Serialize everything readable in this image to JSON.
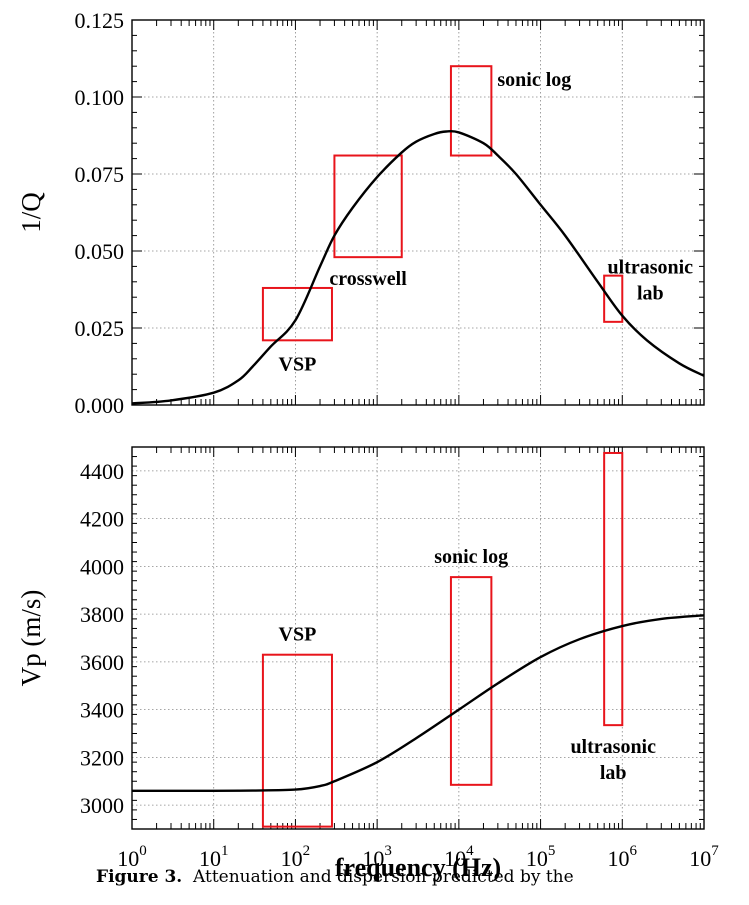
{
  "caption": {
    "label": "Figure 3.",
    "text": "Attenuation and dispersion predicted by the"
  },
  "chart_data": [
    {
      "type": "line",
      "xlabel": "",
      "ylabel": "1/Q",
      "xscale": "log",
      "xlim": [
        1,
        10000000
      ],
      "ylim": [
        0,
        0.125
      ],
      "yticks": [
        "0.000",
        "0.025",
        "0.050",
        "0.075",
        "0.100",
        "0.125"
      ],
      "grid": true,
      "series": [
        {
          "x": [
            1,
            3,
            10,
            20,
            30,
            50,
            100,
            200,
            300,
            500,
            1000,
            2000,
            3000,
            5000,
            7000,
            10000,
            20000,
            30000,
            50000,
            100000,
            200000,
            500000,
            1000000,
            2000000,
            5000000,
            10000000
          ],
          "y": [
            0.0005,
            0.0015,
            0.004,
            0.008,
            0.0125,
            0.019,
            0.0275,
            0.045,
            0.055,
            0.064,
            0.074,
            0.082,
            0.0855,
            0.088,
            0.0888,
            0.0885,
            0.085,
            0.081,
            0.075,
            0.065,
            0.055,
            0.04,
            0.029,
            0.021,
            0.0135,
            0.0095
          ]
        }
      ],
      "annotations": [
        {
          "label": "VSP",
          "x_range": [
            40,
            280
          ],
          "y_range": [
            0.021,
            0.038
          ]
        },
        {
          "label": "crosswell",
          "x_range": [
            300,
            2000
          ],
          "y_range": [
            0.048,
            0.081
          ]
        },
        {
          "label": "sonic log",
          "x_range": [
            8000,
            25000
          ],
          "y_range": [
            0.081,
            0.11
          ]
        },
        {
          "label": "ultrasonic lab",
          "x_range": [
            600000,
            1000000
          ],
          "y_range": [
            0.027,
            0.042
          ]
        }
      ]
    },
    {
      "type": "line",
      "xlabel": "frequency (Hz)",
      "ylabel": "Vp (m/s)",
      "xscale": "log",
      "xlim": [
        1,
        10000000
      ],
      "ylim": [
        2900,
        4500
      ],
      "yticks": [
        "3000",
        "3200",
        "3400",
        "3600",
        "3800",
        "4000",
        "4200",
        "4400"
      ],
      "xticks": [
        "10^0",
        "10^1",
        "10^2",
        "10^3",
        "10^4",
        "10^5",
        "10^6",
        "10^7"
      ],
      "grid": true,
      "series": [
        {
          "x": [
            1,
            10,
            30,
            100,
            200,
            300,
            1000,
            3000,
            10000,
            30000,
            100000,
            300000,
            1000000,
            3000000,
            10000000
          ],
          "y": [
            3060,
            3060,
            3061,
            3065,
            3080,
            3100,
            3180,
            3280,
            3400,
            3510,
            3620,
            3695,
            3750,
            3780,
            3795
          ]
        }
      ],
      "annotations": [
        {
          "label": "VSP",
          "x_range": [
            40,
            280
          ],
          "y_range": [
            2910,
            3630
          ]
        },
        {
          "label": "sonic log",
          "x_range": [
            8000,
            25000
          ],
          "y_range": [
            3085,
            3955
          ]
        },
        {
          "label": "ultrasonic lab",
          "x_range": [
            600000,
            1000000
          ],
          "y_range": [
            3335,
            4475
          ]
        }
      ]
    }
  ]
}
